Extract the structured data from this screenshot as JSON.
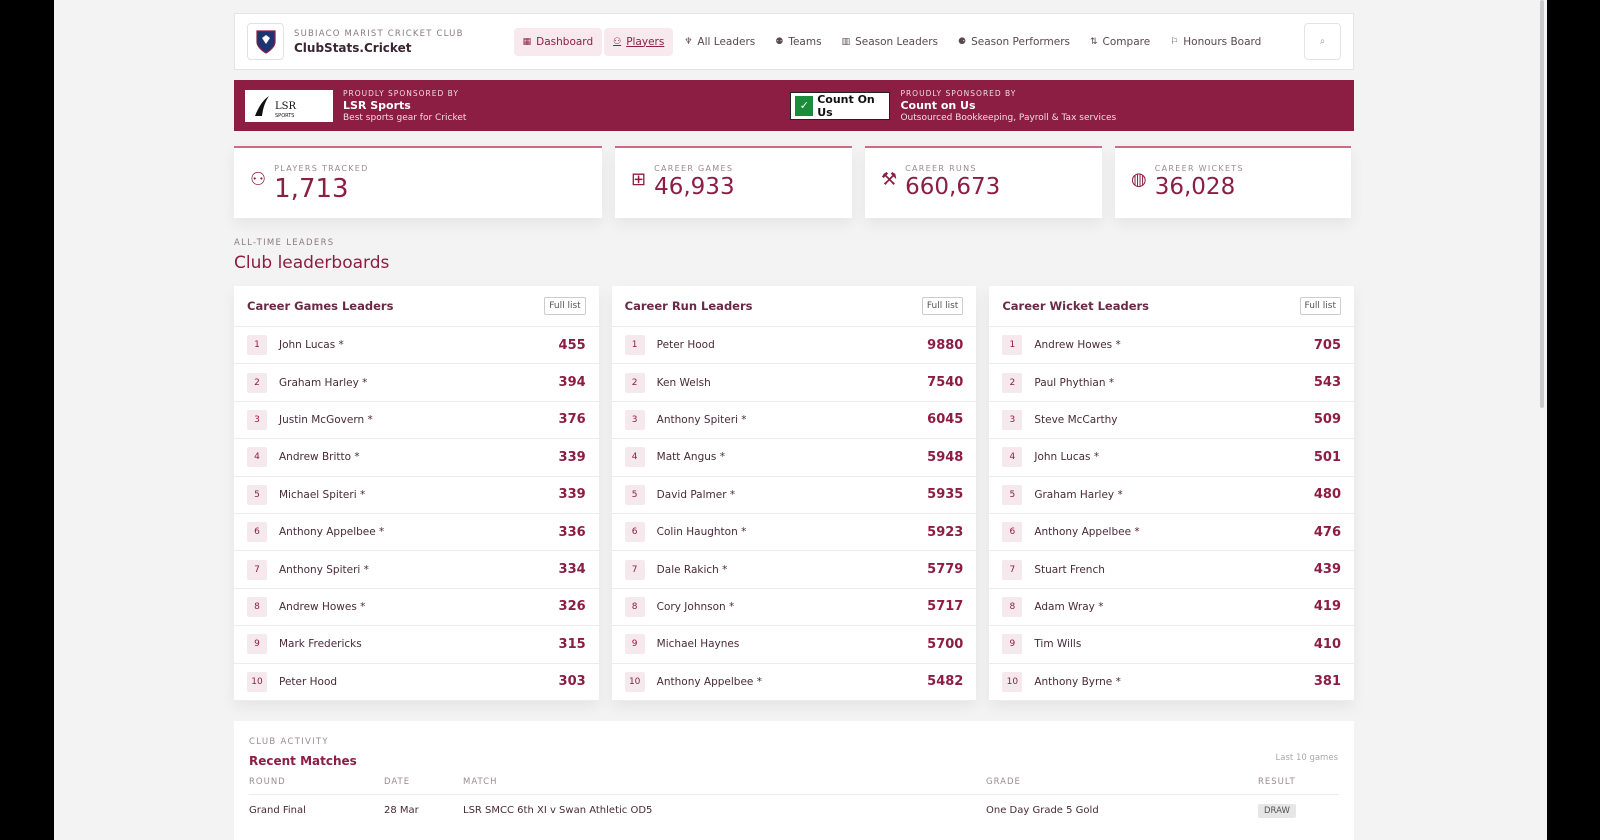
{
  "header": {
    "club_name": "SUBIACO MARIST CRICKET CLUB",
    "site_name": "ClubStats.Cricket",
    "nav": [
      {
        "label": "Dashboard",
        "icon": "dashboard-icon"
      },
      {
        "label": "Players",
        "icon": "players-icon"
      },
      {
        "label": "All Leaders",
        "icon": "trophy-icon"
      },
      {
        "label": "Teams",
        "icon": "teams-icon"
      },
      {
        "label": "Season Leaders",
        "icon": "chart-icon"
      },
      {
        "label": "Season Performers",
        "icon": "performers-icon"
      },
      {
        "label": "Compare",
        "icon": "compare-icon"
      },
      {
        "label": "Honours Board",
        "icon": "honours-icon"
      }
    ]
  },
  "sponsors": [
    {
      "logo_text": "LSR SPORTS",
      "label": "PROUDLY SPONSORED BY",
      "name": "LSR Sports",
      "desc": "Best sports gear for Cricket"
    },
    {
      "logo_text": "Count On Us",
      "label": "PROUDLY SPONSORED BY",
      "name": "Count on Us",
      "desc": "Outsourced Bookkeeping, Payroll & Tax services"
    }
  ],
  "stats": [
    {
      "label": "PLAYERS TRACKED",
      "value": "1,713"
    },
    {
      "label": "CAREER GAMES",
      "value": "46,933"
    },
    {
      "label": "CAREER RUNS",
      "value": "660,673"
    },
    {
      "label": "CAREER WICKETS",
      "value": "36,028"
    }
  ],
  "leaderboards": {
    "eyebrow": "ALL-TIME LEADERS",
    "title": "Club leaderboards",
    "full_list": "Full list",
    "boards": [
      {
        "title": "Career Games Leaders",
        "rows": [
          {
            "rank": "1",
            "name": "John Lucas *",
            "value": "455"
          },
          {
            "rank": "2",
            "name": "Graham Harley *",
            "value": "394"
          },
          {
            "rank": "3",
            "name": "Justin McGovern *",
            "value": "376"
          },
          {
            "rank": "4",
            "name": "Andrew Britto *",
            "value": "339"
          },
          {
            "rank": "5",
            "name": "Michael Spiteri *",
            "value": "339"
          },
          {
            "rank": "6",
            "name": "Anthony Appelbee *",
            "value": "336"
          },
          {
            "rank": "7",
            "name": "Anthony Spiteri *",
            "value": "334"
          },
          {
            "rank": "8",
            "name": "Andrew Howes *",
            "value": "326"
          },
          {
            "rank": "9",
            "name": "Mark Fredericks",
            "value": "315"
          },
          {
            "rank": "10",
            "name": "Peter Hood",
            "value": "303"
          }
        ]
      },
      {
        "title": "Career Run Leaders",
        "rows": [
          {
            "rank": "1",
            "name": "Peter Hood",
            "value": "9880"
          },
          {
            "rank": "2",
            "name": "Ken Welsh",
            "value": "7540"
          },
          {
            "rank": "3",
            "name": "Anthony Spiteri *",
            "value": "6045"
          },
          {
            "rank": "4",
            "name": "Matt Angus *",
            "value": "5948"
          },
          {
            "rank": "5",
            "name": "David Palmer *",
            "value": "5935"
          },
          {
            "rank": "6",
            "name": "Colin Haughton *",
            "value": "5923"
          },
          {
            "rank": "7",
            "name": "Dale Rakich *",
            "value": "5779"
          },
          {
            "rank": "8",
            "name": "Cory Johnson *",
            "value": "5717"
          },
          {
            "rank": "9",
            "name": "Michael Haynes",
            "value": "5700"
          },
          {
            "rank": "10",
            "name": "Anthony Appelbee *",
            "value": "5482"
          }
        ]
      },
      {
        "title": "Career Wicket Leaders",
        "rows": [
          {
            "rank": "1",
            "name": "Andrew Howes *",
            "value": "705"
          },
          {
            "rank": "2",
            "name": "Paul Phythian *",
            "value": "543"
          },
          {
            "rank": "3",
            "name": "Steve McCarthy",
            "value": "509"
          },
          {
            "rank": "4",
            "name": "John Lucas *",
            "value": "501"
          },
          {
            "rank": "5",
            "name": "Graham Harley *",
            "value": "480"
          },
          {
            "rank": "6",
            "name": "Anthony Appelbee *",
            "value": "476"
          },
          {
            "rank": "7",
            "name": "Stuart French",
            "value": "439"
          },
          {
            "rank": "8",
            "name": "Adam Wray *",
            "value": "419"
          },
          {
            "rank": "9",
            "name": "Tim Wills",
            "value": "410"
          },
          {
            "rank": "10",
            "name": "Anthony Byrne *",
            "value": "381"
          }
        ]
      }
    ]
  },
  "recent": {
    "eyebrow": "CLUB ACTIVITY",
    "title": "Recent Matches",
    "meta": "Last 10 games",
    "columns": [
      "ROUND",
      "DATE",
      "MATCH",
      "GRADE",
      "RESULT"
    ],
    "rows": [
      {
        "round": "Grand Final",
        "date": "28 Mar",
        "match": "LSR SMCC 6th XI v Swan Athletic OD5",
        "grade": "One Day Grade 5 Gold",
        "result": "DRAW"
      }
    ]
  },
  "colors": {
    "accent": "#8c1d43",
    "accent_light": "#f6e9ee"
  }
}
